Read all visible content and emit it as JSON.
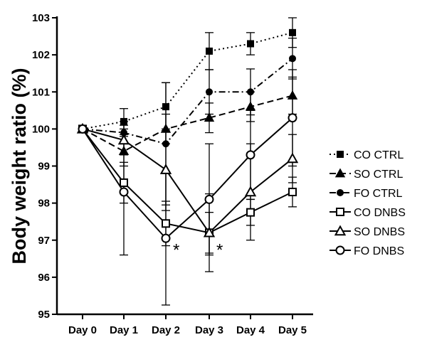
{
  "chart_data": {
    "type": "line",
    "title": "",
    "xlabel": "",
    "ylabel": "Body weight ratio (%)",
    "categories": [
      "Day 0",
      "Day 1",
      "Day 2",
      "Day 3",
      "Day 4",
      "Day 5"
    ],
    "yticks": [
      "95",
      "96",
      "97",
      "98",
      "99",
      "100",
      "101",
      "102",
      "103"
    ],
    "ylim": [
      95,
      103
    ],
    "grid": false,
    "legend_position": "right",
    "series": [
      {
        "name": "CO CTRL",
        "marker": "square",
        "filled": true,
        "dash": "dotted",
        "values": [
          100,
          100.2,
          100.6,
          102.1,
          102.3,
          102.6
        ],
        "errors": [
          0,
          0.35,
          0.65,
          0.5,
          0.3,
          0.4
        ]
      },
      {
        "name": "SO CTRL",
        "marker": "triangle",
        "filled": true,
        "dash": "dashed",
        "values": [
          100,
          99.4,
          100.0,
          100.3,
          100.6,
          100.9
        ],
        "errors": [
          0,
          0.4,
          0.4,
          0.4,
          0.4,
          0.5
        ]
      },
      {
        "name": "FO CTRL",
        "marker": "circle",
        "filled": true,
        "dash": "dashdot",
        "values": [
          100,
          99.9,
          99.6,
          101.0,
          101.0,
          101.9
        ],
        "errors": [
          0,
          0.3,
          1.65,
          0.6,
          0.62,
          0.55
        ]
      },
      {
        "name": "CO DNBS",
        "marker": "square",
        "filled": false,
        "dash": "solid",
        "values": [
          100,
          98.55,
          97.45,
          97.2,
          97.75,
          98.3
        ],
        "errors": [
          0,
          0.55,
          0.6,
          0.55,
          0.35,
          0.4
        ]
      },
      {
        "name": "SO DNBS",
        "marker": "triangle",
        "filled": false,
        "dash": "solid",
        "values": [
          100,
          99.7,
          98.9,
          97.2,
          98.3,
          99.2
        ],
        "errors": [
          0,
          0.4,
          1.1,
          1.05,
          1.3,
          0.65
        ]
      },
      {
        "name": "FO DNBS",
        "marker": "circle",
        "filled": false,
        "dash": "solid",
        "values": [
          100,
          98.3,
          97.05,
          98.1,
          99.3,
          100.3
        ],
        "errors": [
          0,
          1.7,
          1.8,
          1.5,
          1.2,
          1.3
        ]
      }
    ],
    "annotations": [
      {
        "text": "*",
        "category": "Day 2",
        "y": 96.85
      },
      {
        "text": "*",
        "category": "Day 3",
        "y": 96.85
      }
    ]
  }
}
